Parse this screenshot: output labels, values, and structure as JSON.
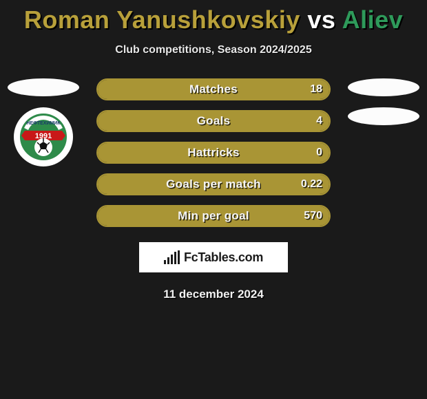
{
  "title": {
    "player1": "Roman Yanushkovskiy",
    "vs": " vs ",
    "player2": "Aliev",
    "color1": "#b8a03a",
    "color_vs": "#ffffff",
    "color2": "#2e9a5a"
  },
  "subtitle": "Club competitions, Season 2024/2025",
  "accent_colors": {
    "left": "#a99535",
    "right": "#2e9a5a"
  },
  "club_badge": {
    "name_top": "НЕФТЕХИМИК",
    "year": "1991",
    "outer_color": "#2e8b4a",
    "banner_color": "#c81818"
  },
  "stats": {
    "row_border_color": "#a99535",
    "fill_color": "#a99535",
    "rows": [
      {
        "label": "Matches",
        "left": "",
        "right": "18",
        "left_pct": 100
      },
      {
        "label": "Goals",
        "left": "",
        "right": "4",
        "left_pct": 100
      },
      {
        "label": "Hattricks",
        "left": "",
        "right": "0",
        "left_pct": 100
      },
      {
        "label": "Goals per match",
        "left": "",
        "right": "0.22",
        "left_pct": 100
      },
      {
        "label": "Min per goal",
        "left": "",
        "right": "570",
        "left_pct": 100
      }
    ]
  },
  "watermark": "FcTables.com",
  "date": "11 december 2024",
  "background_color": "#1a1a1a"
}
